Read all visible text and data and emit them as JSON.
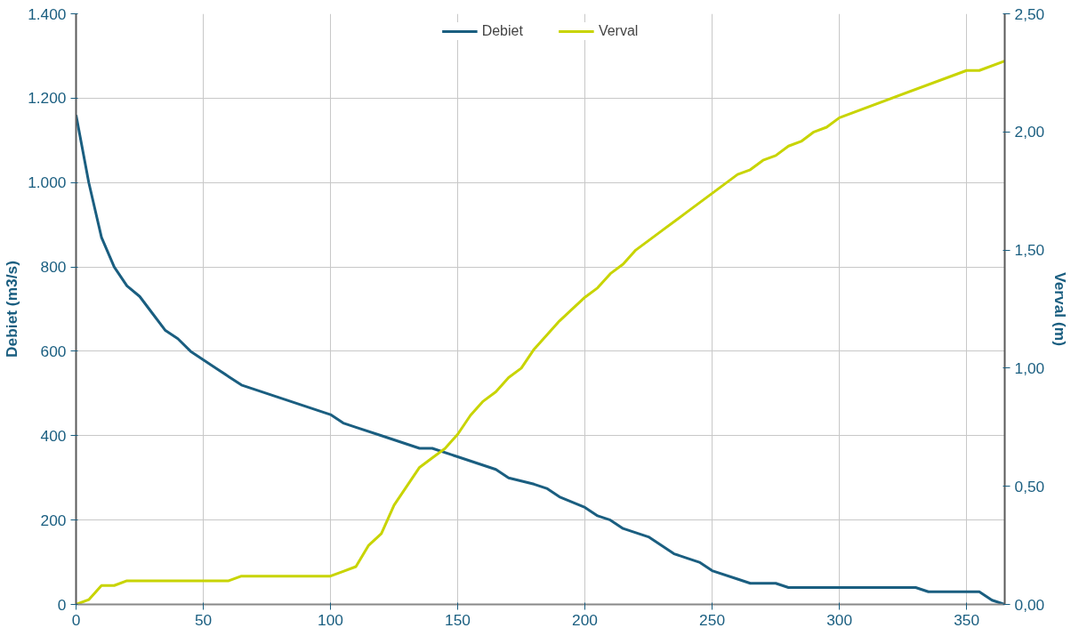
{
  "chart_data": {
    "type": "line",
    "xlabel": null,
    "ylabel": "Debiet (m3/s)",
    "y2label": "Verval (m)",
    "xlim": [
      0,
      365
    ],
    "xticks": [
      0,
      50,
      100,
      150,
      200,
      250,
      300,
      350
    ],
    "ylim": [
      0,
      1400
    ],
    "yticks": [
      0,
      200,
      400,
      600,
      800,
      {
        "value": 1000,
        "label": "1.000"
      },
      {
        "value": 1200,
        "label": "1.200"
      },
      {
        "value": 1400,
        "label": "1.400"
      }
    ],
    "y2lim": [
      0,
      2.5
    ],
    "y2ticks": [
      {
        "value": 0,
        "label": "0,00"
      },
      {
        "value": 0.5,
        "label": "0,50"
      },
      {
        "value": 1,
        "label": "1,00"
      },
      {
        "value": 1.5,
        "label": "1,50"
      },
      {
        "value": 2,
        "label": "2,00"
      },
      {
        "value": 2.5,
        "label": "2,50"
      }
    ],
    "grid": true,
    "legend": "top",
    "marker": "none",
    "line_style": "solid",
    "series": [
      {
        "name": "Debiet",
        "color": "#1a5e80",
        "x": [
          0,
          5,
          10,
          15,
          20,
          25,
          30,
          35,
          40,
          45,
          50,
          55,
          60,
          65,
          70,
          80,
          90,
          100,
          105,
          110,
          120,
          130,
          135,
          140,
          150,
          160,
          165,
          170,
          180,
          185,
          190,
          200,
          205,
          210,
          215,
          220,
          225,
          230,
          235,
          240,
          245,
          250,
          260,
          265,
          275,
          280,
          300,
          330,
          335,
          350,
          355,
          360,
          365
        ],
        "values": [
          1160,
          1000,
          870,
          800,
          755,
          730,
          690,
          650,
          630,
          600,
          580,
          560,
          540,
          520,
          510,
          490,
          470,
          450,
          430,
          420,
          400,
          380,
          370,
          370,
          350,
          330,
          320,
          300,
          285,
          275,
          255,
          230,
          210,
          200,
          180,
          170,
          160,
          140,
          120,
          110,
          100,
          80,
          60,
          50,
          50,
          40,
          40,
          40,
          30,
          30,
          30,
          10,
          0
        ]
      },
      {
        "name": "Verval",
        "color": "#c8d400",
        "axis": "y2",
        "x": [
          0,
          5,
          10,
          15,
          20,
          60,
          65,
          100,
          105,
          110,
          115,
          120,
          125,
          130,
          135,
          140,
          145,
          150,
          155,
          160,
          165,
          170,
          175,
          180,
          190,
          200,
          205,
          210,
          215,
          220,
          230,
          240,
          250,
          260,
          265,
          270,
          275,
          280,
          285,
          290,
          295,
          300,
          350,
          355,
          365
        ],
        "values": [
          0,
          0.02,
          0.08,
          0.08,
          0.1,
          0.1,
          0.12,
          0.12,
          0.14,
          0.16,
          0.25,
          0.3,
          0.42,
          0.5,
          0.58,
          0.62,
          0.66,
          0.72,
          0.8,
          0.86,
          0.9,
          0.96,
          1.0,
          1.08,
          1.2,
          1.3,
          1.34,
          1.4,
          1.44,
          1.5,
          1.58,
          1.66,
          1.74,
          1.82,
          1.84,
          1.88,
          1.9,
          1.94,
          1.96,
          2.0,
          2.02,
          2.06,
          2.26,
          2.26,
          2.3
        ]
      }
    ]
  }
}
